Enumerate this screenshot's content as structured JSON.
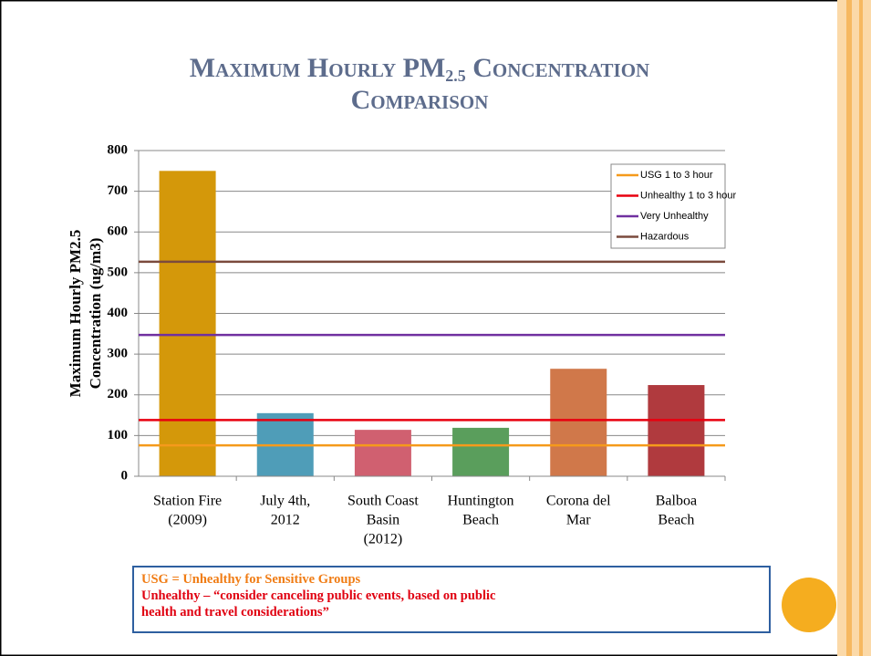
{
  "title": {
    "main": "Maximum Hourly PM",
    "sub": "2.5",
    "rest": "Concentration",
    "line2": "Comparison"
  },
  "chart_data": {
    "type": "bar",
    "categories": [
      [
        "Station Fire",
        "(2009)"
      ],
      [
        "July 4th,",
        "2012"
      ],
      [
        "South Coast",
        "Basin",
        "(2012)"
      ],
      [
        "Huntington",
        "Beach"
      ],
      [
        "Corona del",
        "Mar"
      ],
      [
        "Balboa",
        "Beach"
      ]
    ],
    "values": [
      750,
      155,
      114,
      119,
      264,
      224
    ],
    "colors": [
      "#d4980a",
      "#4f9db8",
      "#d06070",
      "#5a9e5c",
      "#d0784a",
      "#b03a3e"
    ],
    "ylabel": [
      "Maximum Hourly PM2.5",
      "Concentration (ug/m3)"
    ],
    "ylim": [
      0,
      800
    ],
    "yticks": [
      0,
      100,
      200,
      300,
      400,
      500,
      600,
      700,
      800
    ],
    "grid": true,
    "lines": [
      {
        "name": "USG 1 to 3 hour",
        "color": "#f59a1b",
        "value": 76
      },
      {
        "name": "Unhealthy 1 to 3 hour",
        "color": "#e8000f",
        "value": 138
      },
      {
        "name": "Very Unhealthy",
        "color": "#7030a0",
        "value": 347
      },
      {
        "name": "Hazardous",
        "color": "#7b4a3d",
        "value": 527
      }
    ],
    "legend": "upper right"
  },
  "notes": [
    "USG = Unhealthy for Sensitive Groups",
    "Unhealthy – “consider canceling public events, based on public",
    "health and travel considerations”"
  ]
}
